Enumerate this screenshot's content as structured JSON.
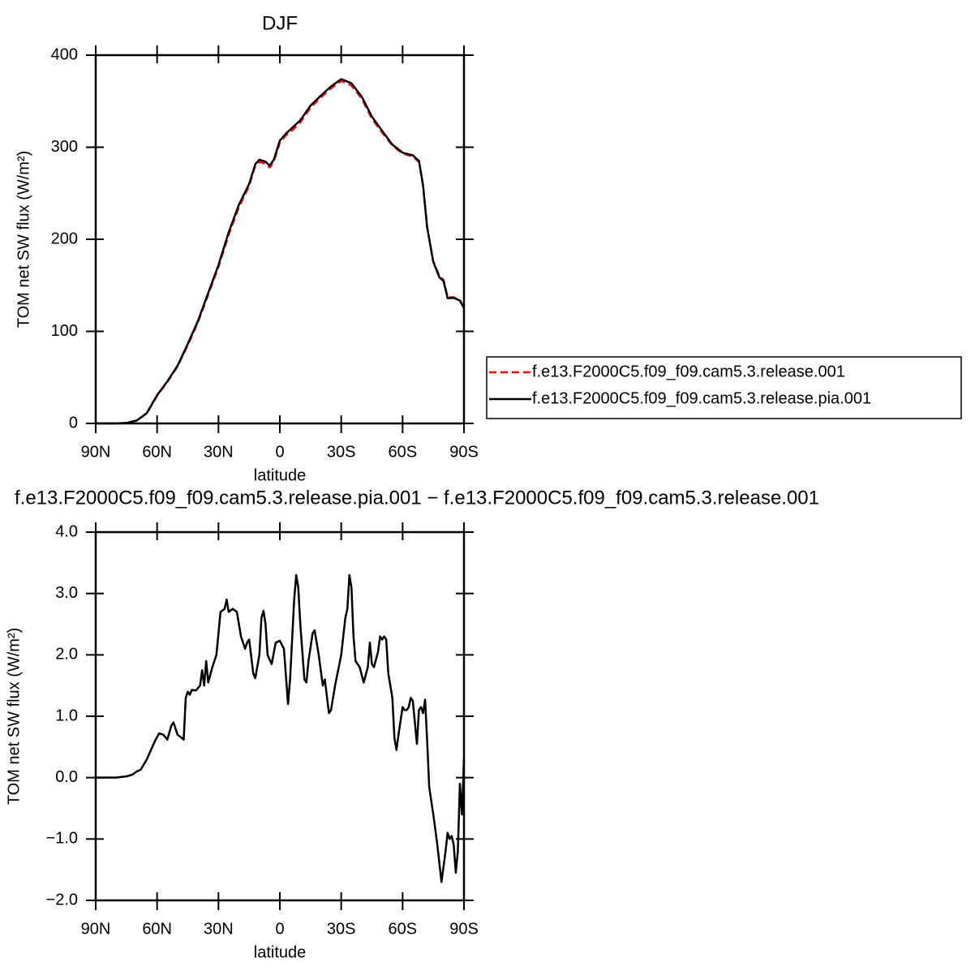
{
  "chart_data": [
    {
      "type": "line",
      "title": "DJF",
      "xlabel": "latitude",
      "ylabel": "TOM net SW flux (W/m²)",
      "x": [
        90,
        85,
        80,
        75,
        70,
        65,
        60,
        55,
        50,
        45,
        40,
        35,
        30,
        25,
        20,
        15,
        12,
        10,
        7,
        5,
        3,
        0,
        -3,
        -5,
        -10,
        -15,
        -20,
        -25,
        -30,
        -35,
        -40,
        -45,
        -50,
        -55,
        -60,
        -65,
        -68,
        -70,
        -72,
        -75,
        -78,
        -80,
        -82,
        -85,
        -88,
        -90
      ],
      "series": [
        {
          "name": "f.e13.F2000C5.f09_f09.cam5.3.release.001",
          "color": "#ff0000",
          "linestyle": "dashed",
          "values": [
            0,
            0,
            0,
            0.5,
            3,
            11,
            30,
            45,
            62,
            85,
            110,
            140,
            170,
            205,
            235,
            258,
            280,
            284,
            282,
            278,
            284,
            305,
            313,
            316,
            327,
            343,
            354,
            364,
            372,
            367,
            353,
            331,
            316,
            302,
            293,
            290,
            284,
            258,
            213,
            176,
            160,
            156,
            137,
            137,
            134,
            125
          ]
        },
        {
          "name": "f.e13.F2000C5.f09_f09.cam5.3.release.pia.001",
          "color": "#000000",
          "linestyle": "solid",
          "values": [
            0,
            0,
            0,
            0.5,
            3.1,
            11.3,
            30.7,
            45.6,
            62.7,
            86.4,
            111.5,
            141.8,
            172,
            207.7,
            237.6,
            260.2,
            281.6,
            286.5,
            284.3,
            280,
            286.2,
            307.2,
            314.8,
            319,
            329.3,
            345.2,
            356,
            366,
            374,
            369.5,
            355,
            333.2,
            317.8,
            302.9,
            294.1,
            291.2,
            285.1,
            258.5,
            213.1,
            175.3,
            158.6,
            154.7,
            136,
            136.4,
            133.5,
            125.3
          ]
        }
      ],
      "xlim": [
        90,
        -90
      ],
      "xticks": [
        {
          "value": 90,
          "label": "90N"
        },
        {
          "value": 60,
          "label": "60N"
        },
        {
          "value": 30,
          "label": "30N"
        },
        0,
        {
          "value": -30,
          "label": "30S"
        },
        {
          "value": -60,
          "label": "60S"
        },
        {
          "value": -90,
          "label": "90S"
        }
      ],
      "ylim": [
        0,
        400
      ],
      "yticks": [
        0,
        100,
        200,
        300,
        400
      ],
      "legend": "right"
    },
    {
      "type": "line",
      "title": "f.e13.F2000C5.f09_f09.cam5.3.release.pia.001 − f.e13.F2000C5.f09_f09.cam5.3.release.001",
      "xlabel": "latitude",
      "ylabel": "TOM net SW flux (W/m²)",
      "x": [
        90,
        80,
        75,
        72,
        70,
        68,
        65,
        63,
        61,
        59,
        57,
        55,
        53,
        52,
        50,
        47,
        46,
        45,
        44,
        43,
        41,
        39,
        38,
        37,
        36,
        35,
        33,
        31,
        29,
        27,
        26,
        25,
        23,
        21,
        19,
        17,
        16,
        15,
        13,
        12,
        10,
        9,
        8,
        7,
        6,
        4,
        2,
        0,
        -2,
        -4,
        -5,
        -7,
        -8,
        -9,
        -10,
        -12,
        -13,
        -14,
        -16,
        -17,
        -19,
        -21,
        -22,
        -24,
        -25,
        -27,
        -30,
        -32,
        -33,
        -34,
        -35,
        -36,
        -37,
        -39,
        -41,
        -43,
        -44,
        -45,
        -46,
        -48,
        -49,
        -50,
        -51,
        -52,
        -53,
        -55,
        -56,
        -57,
        -58,
        -60,
        -61,
        -62,
        -63,
        -64,
        -65,
        -67,
        -68,
        -69,
        -70,
        -71,
        -72,
        -73,
        -75,
        -77,
        -79,
        -80,
        -81,
        -82,
        -83,
        -84,
        -85,
        -86,
        -87,
        -88,
        -89,
        -90
      ],
      "series": [
        {
          "color": "#000000",
          "linestyle": "solid",
          "values": [
            0,
            0,
            0.02,
            0.05,
            0.1,
            0.13,
            0.3,
            0.45,
            0.6,
            0.72,
            0.7,
            0.62,
            0.85,
            0.9,
            0.7,
            0.62,
            1.3,
            1.4,
            1.35,
            1.43,
            1.42,
            1.5,
            1.75,
            1.5,
            1.9,
            1.55,
            1.8,
            2.0,
            2.7,
            2.75,
            2.9,
            2.7,
            2.75,
            2.7,
            2.3,
            2.1,
            2.2,
            2.25,
            1.7,
            1.62,
            2.0,
            2.6,
            2.72,
            2.5,
            2.0,
            1.85,
            2.2,
            2.23,
            2.1,
            1.2,
            1.6,
            2.9,
            3.3,
            3.1,
            2.5,
            1.6,
            1.55,
            1.9,
            2.35,
            2.4,
            2.0,
            1.5,
            1.6,
            1.05,
            1.1,
            1.5,
            2.0,
            2.6,
            2.75,
            3.3,
            3.1,
            2.3,
            1.9,
            1.8,
            1.55,
            1.8,
            2.2,
            1.85,
            1.8,
            2.05,
            2.3,
            2.25,
            2.3,
            2.25,
            1.7,
            1.3,
            0.65,
            0.45,
            0.7,
            1.15,
            1.1,
            1.1,
            1.15,
            1.3,
            1.25,
            0.55,
            1.1,
            1.15,
            1.05,
            1.27,
            0.6,
            -0.15,
            -0.6,
            -1.1,
            -1.7,
            -1.45,
            -1.2,
            -0.9,
            -1.0,
            -0.95,
            -1.1,
            -1.55,
            -1.2,
            -0.1,
            -0.6,
            0.3
          ]
        }
      ],
      "xlim": [
        90,
        -90
      ],
      "xticks": [
        {
          "value": 90,
          "label": "90N"
        },
        {
          "value": 60,
          "label": "60N"
        },
        {
          "value": 30,
          "label": "30N"
        },
        0,
        {
          "value": -30,
          "label": "30S"
        },
        {
          "value": -60,
          "label": "60S"
        },
        {
          "value": -90,
          "label": "90S"
        }
      ],
      "ylim": [
        -2,
        4
      ],
      "yticks": [
        {
          "value": -2,
          "label": "−2.0"
        },
        {
          "value": -1,
          "label": "−1.0"
        },
        {
          "value": 0,
          "label": "0.0"
        },
        {
          "value": 1,
          "label": "1.0"
        },
        {
          "value": 2,
          "label": "2.0"
        },
        {
          "value": 3,
          "label": "3.0"
        },
        {
          "value": 4,
          "label": "4.0"
        }
      ]
    }
  ]
}
